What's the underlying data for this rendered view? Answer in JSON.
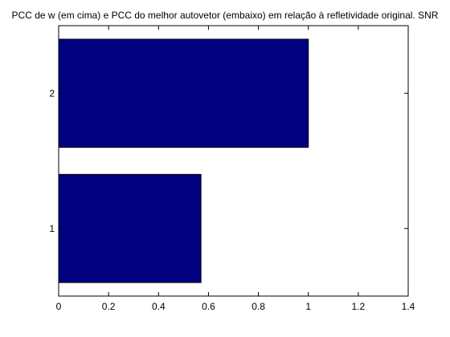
{
  "chart_data": {
    "type": "bar",
    "orientation": "horizontal",
    "title": "PCC de w (em cima) e PCC do melhor autovetor (embaixo) em relação à refletividade original. SNR",
    "xlabel": "",
    "ylabel": "",
    "categories": [
      "1",
      "2"
    ],
    "values": [
      0.57,
      1.0
    ],
    "xlim": [
      0,
      1.4
    ],
    "xticks": [
      "0",
      "0.2",
      "0.4",
      "0.6",
      "0.8",
      "1",
      "1.2",
      "1.4"
    ],
    "ylim": [
      0.5,
      2.5
    ],
    "grid": false,
    "legend": "none",
    "bar_color": "#000080"
  }
}
